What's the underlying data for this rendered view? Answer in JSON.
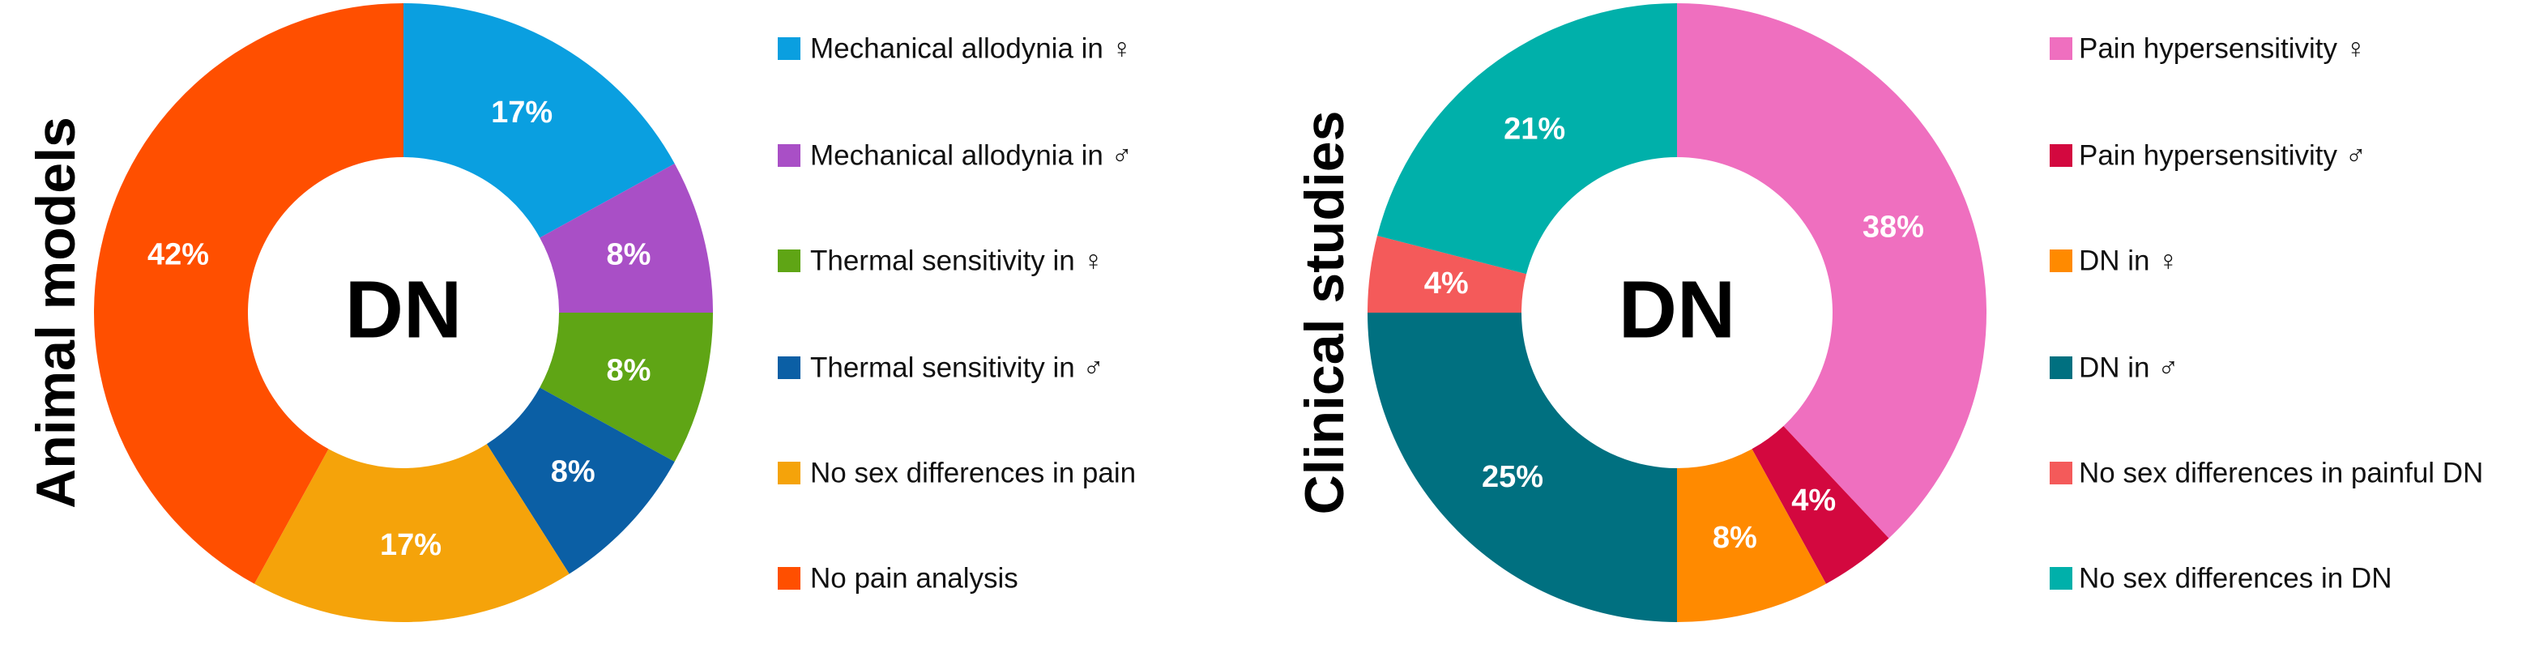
{
  "chart_data": [
    {
      "type": "donut",
      "title": "Animal models",
      "center_label": "DN",
      "categories": [
        "Mechanical allodynia in ♀",
        "Mechanical allodynia in ♂",
        "Thermal sensitivity in ♀",
        "Thermal sensitivity in ♂",
        "No sex differences in pain",
        "No pain analysis"
      ],
      "values": [
        17,
        8,
        8,
        8,
        17,
        42
      ],
      "value_labels": [
        "17%",
        "8%",
        "8%",
        "8%",
        "17%",
        "42%"
      ],
      "colors": [
        "#0a9fe0",
        "#a94fc6",
        "#5fa515",
        "#0b5fa5",
        "#f5a30a",
        "#ff4f00"
      ]
    },
    {
      "type": "donut",
      "title": "Clinical studies",
      "center_label": "DN",
      "categories": [
        "Pain hypersensitivity ♀",
        "Pain hypersensitivity ♂",
        "DN in ♀",
        "DN in ♂",
        "No sex differences in painful DN",
        "No sex differences in DN"
      ],
      "values": [
        38,
        4,
        8,
        25,
        4,
        21
      ],
      "value_labels": [
        "38%",
        "4%",
        "8%",
        "25%",
        "4%",
        "21%"
      ],
      "colors": [
        "#ef6fbf",
        "#d3083f",
        "#ff8a00",
        "#007080",
        "#f45a5a",
        "#00b0aa"
      ]
    }
  ]
}
